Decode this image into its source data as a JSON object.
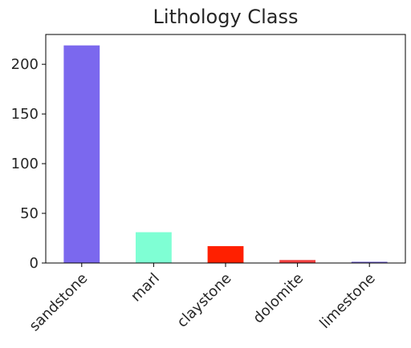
{
  "chart_data": {
    "type": "bar",
    "title": "Lithology Class",
    "xlabel": "",
    "ylabel": "",
    "categories": [
      "sandstone",
      "marl",
      "claystone",
      "dolomite",
      "limestone"
    ],
    "values": [
      219,
      31,
      17,
      3,
      1
    ],
    "colors": [
      "#7b68ee",
      "#7fffd4",
      "#ff2000",
      "#f04040",
      "#6a5acd"
    ],
    "yticks": [
      0,
      50,
      100,
      150,
      200
    ],
    "ylim": [
      0,
      230
    ],
    "grid": false,
    "legend": "none"
  }
}
